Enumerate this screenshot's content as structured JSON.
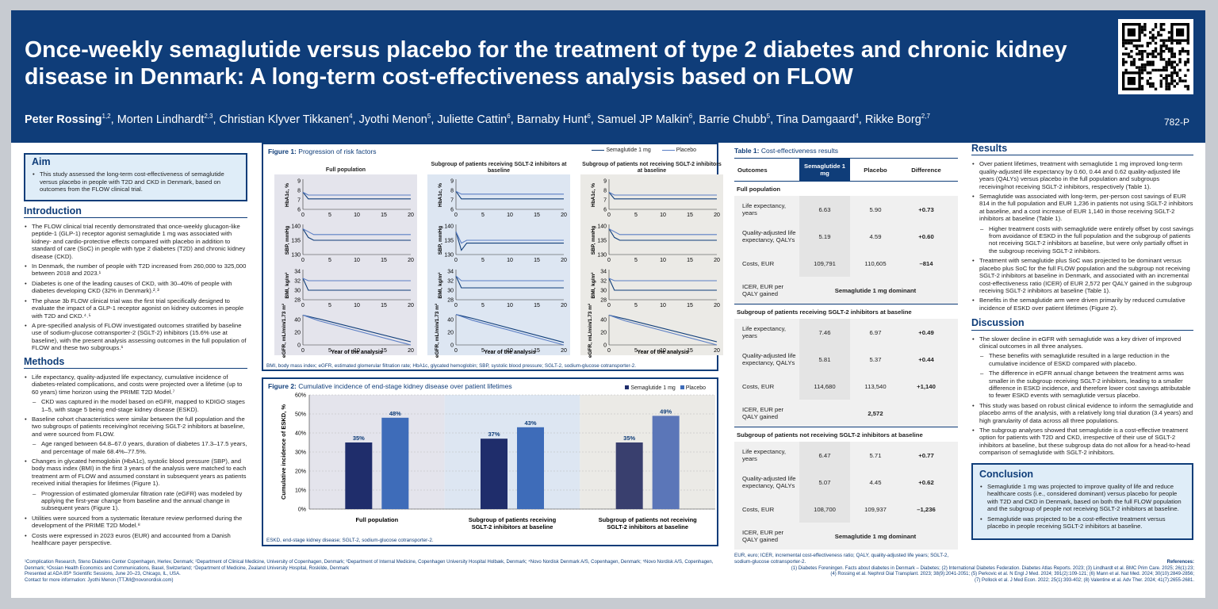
{
  "header": {
    "title": "Once-weekly semaglutide versus placebo for the treatment of type 2 diabetes and chronic kidney disease in Denmark: A long-term cost-effectiveness analysis based on FLOW",
    "authors": [
      [
        "Peter Rossing",
        "1,2"
      ],
      [
        "Morten Lindhardt",
        "2,3"
      ],
      [
        "Christian Klyver Tikkanen",
        "4"
      ],
      [
        "Jyothi Menon",
        "5"
      ],
      [
        "Juliette Cattin",
        "6"
      ],
      [
        "Barnaby Hunt",
        "6"
      ],
      [
        "Samuel JP Malkin",
        "6"
      ],
      [
        "Barrie Chubb",
        "5"
      ],
      [
        "Tina Damgaard",
        "4"
      ],
      [
        "Rikke Borg",
        "2,7"
      ]
    ],
    "poster_number": "782-P"
  },
  "aim": {
    "heading": "Aim",
    "text": "This study assessed the long-term cost-effectiveness of semaglutide versus placebo in people with T2D and CKD in Denmark, based on outcomes from the FLOW clinical trial."
  },
  "introduction": {
    "heading": "Introduction",
    "items": [
      [
        "b",
        "The FLOW clinical trial recently demonstrated that once-weekly glucagon-like peptide-1 (GLP-1) receptor agonist semaglutide 1 mg was associated with kidney- and cardio-protective effects compared with placebo in addition to standard of care (SoC) in people with type 2 diabetes (T2D) and chronic kidney disease (CKD)."
      ],
      [
        "b",
        "In Denmark, the number of people with T2D increased from 260,000 to 325,000 between 2018 and 2023.¹"
      ],
      [
        "b",
        "Diabetes is one of the leading causes of CKD, with 30–40% of people with diabetes developing CKD (32% in Denmark).²˒³"
      ],
      [
        "b",
        "The phase 3b FLOW clinical trial was the first trial specifically designed to evaluate the impact of a GLP-1 receptor agonist on kidney outcomes in people with T2D and CKD.⁴˒⁵"
      ],
      [
        "b",
        "A pre-specified analysis of FLOW investigated outcomes stratified by baseline use of sodium-glucose cotransporter-2 (SGLT-2) inhibitors (15.6% use at baseline), with the present analysis assessing outcomes in the full population of FLOW and these two subgroups.⁶"
      ]
    ]
  },
  "methods": {
    "heading": "Methods",
    "items": [
      [
        "b",
        "Life expectancy, quality-adjusted life expectancy, cumulative incidence of diabetes-related complications, and costs were projected over a lifetime (up to 60 years) time horizon using the PRIME T2D Model.⁷"
      ],
      [
        "s",
        "CKD was captured in the model based on eGFR, mapped to KDIGO stages 1–5, with stage 5 being end-stage kidney disease (ESKD)."
      ],
      [
        "b",
        "Baseline cohort characteristics were similar between the full population and the two subgroups of patients receiving/not receiving SGLT-2 inhibitors at baseline, and were sourced from FLOW."
      ],
      [
        "s",
        "Age ranged between 64.8–67.0 years, duration of diabetes 17.3–17.5 years, and percentage of male 68.4%–77.5%."
      ],
      [
        "b",
        "Changes in glycated hemoglobin (HbA1c), systolic blood pressure (SBP), and body mass index (BMI) in the first 3 years of the analysis were matched to each treatment arm of FLOW and assumed constant in subsequent years as patients received initial therapies for lifetimes (Figure 1)."
      ],
      [
        "s",
        "Progression of estimated glomerular filtration rate (eGFR) was modeled by applying the first-year change from baseline and the annual change in subsequent years (Figure 1)."
      ],
      [
        "b",
        "Utilities were sourced from a systematic literature review performed during the development of the PRIME T2D Model.⁸"
      ],
      [
        "b",
        "Costs were expressed in 2023 euros (EUR) and accounted from a Danish healthcare payer perspective."
      ]
    ]
  },
  "figure1": {
    "label": "Figure 1:",
    "title": "Progression of risk factors",
    "legend": [
      "Semaglutide 1 mg",
      "Placebo"
    ],
    "panels": [
      "Full population",
      "Subgroup of patients receiving SGLT-2 inhibitors at baseline",
      "Subgroup of patients not receiving SGLT-2 inhibitors at baseline"
    ],
    "ylabels": [
      "HbA1c, %",
      "SBP, mmHg",
      "BMI, kg/m²",
      "eGFR, mL/min/1.73 m²"
    ],
    "xlabel": "Year of the analysis",
    "footnote": "BMI, body mass index; eGFR, estimated glomerular filtration rate; HbA1c, glycated hemoglobin; SBP, systolic blood pressure; SGLT-2, sodium-glucose cotransporter-2."
  },
  "figure2": {
    "label": "Figure 2:",
    "title": "Cumulative incidence of end-stage kidney disease over patient lifetimes",
    "legend": [
      "Semaglutide 1 mg",
      "Placebo"
    ],
    "ylabel": "Cumulative incidence of ESKD, %",
    "footnote": "ESKD, end-stage kidney disease; SGLT-2, sodium-glucose cotransporter-2."
  },
  "chart_data": [
    {
      "type": "line",
      "panel": "Full population",
      "x": [
        0,
        1,
        2,
        3,
        20
      ],
      "colors": {
        "semaglutide": "#0f3d79",
        "placebo": "#5b7ec4"
      },
      "series": [
        {
          "name": "Semaglutide 1 mg",
          "metric": "HbA1c",
          "values": [
            7.8,
            7.1,
            7.1,
            7.1,
            7.1
          ]
        },
        {
          "name": "Placebo",
          "metric": "HbA1c",
          "values": [
            7.8,
            7.5,
            7.5,
            7.5,
            7.5
          ]
        },
        {
          "name": "Semaglutide 1 mg",
          "metric": "SBP",
          "values": [
            139,
            136,
            135,
            135,
            135
          ]
        },
        {
          "name": "Placebo",
          "metric": "SBP",
          "values": [
            139,
            138,
            137,
            137,
            137
          ]
        },
        {
          "name": "Semaglutide 1 mg",
          "metric": "BMI",
          "values": [
            32.5,
            30,
            30,
            30,
            30
          ]
        },
        {
          "name": "Placebo",
          "metric": "BMI",
          "values": [
            32.5,
            32,
            32,
            32,
            32
          ]
        },
        {
          "name": "Semaglutide 1 mg",
          "metric": "eGFR",
          "values": [
            47,
            45,
            43,
            41,
            5
          ]
        },
        {
          "name": "Placebo",
          "metric": "eGFR",
          "values": [
            47,
            44,
            41,
            38,
            0
          ]
        }
      ],
      "xticks": [
        0,
        5,
        10,
        15,
        20
      ],
      "yticks": {
        "HbA1c": [
          6,
          7,
          8,
          9
        ],
        "SBP": [
          130,
          135,
          140
        ],
        "BMI": [
          28,
          30,
          32,
          34
        ],
        "eGFR": [
          0,
          20,
          40
        ]
      }
    },
    {
      "type": "line",
      "panel": "Subgroup of patients receiving SGLT-2 inhibitors at baseline",
      "x": [
        0,
        1,
        2,
        3,
        20
      ],
      "series": [
        {
          "name": "Semaglutide 1 mg",
          "metric": "HbA1c",
          "values": [
            7.9,
            7.1,
            7.1,
            7.1,
            7.1
          ]
        },
        {
          "name": "Placebo",
          "metric": "HbA1c",
          "values": [
            7.9,
            7.6,
            7.6,
            7.6,
            7.6
          ]
        },
        {
          "name": "Semaglutide 1 mg",
          "metric": "SBP",
          "values": [
            138,
            131.5,
            134,
            134,
            134
          ]
        },
        {
          "name": "Placebo",
          "metric": "SBP",
          "values": [
            138,
            134,
            135,
            135,
            135
          ]
        },
        {
          "name": "Semaglutide 1 mg",
          "metric": "BMI",
          "values": [
            33,
            30.5,
            30.5,
            30.5,
            30.5
          ]
        },
        {
          "name": "Placebo",
          "metric": "BMI",
          "values": [
            33,
            32,
            32,
            32,
            32
          ]
        },
        {
          "name": "Semaglutide 1 mg",
          "metric": "eGFR",
          "values": [
            48,
            46,
            44,
            42,
            4
          ]
        },
        {
          "name": "Placebo",
          "metric": "eGFR",
          "values": [
            48,
            45,
            42,
            39,
            0
          ]
        }
      ],
      "xticks": [
        0,
        5,
        10,
        15,
        20
      ],
      "yticks": {
        "HbA1c": [
          6,
          7,
          8,
          9
        ],
        "SBP": [
          130,
          135,
          140
        ],
        "BMI": [
          28,
          30,
          32,
          34
        ],
        "eGFR": [
          0,
          20,
          40
        ]
      }
    },
    {
      "type": "line",
      "panel": "Subgroup of patients not receiving SGLT-2 inhibitors at baseline",
      "x": [
        0,
        1,
        2,
        3,
        20
      ],
      "series": [
        {
          "name": "Semaglutide 1 mg",
          "metric": "HbA1c",
          "values": [
            7.8,
            7.1,
            7.1,
            7.1,
            7.1
          ]
        },
        {
          "name": "Placebo",
          "metric": "HbA1c",
          "values": [
            7.8,
            7.5,
            7.5,
            7.5,
            7.5
          ]
        },
        {
          "name": "Semaglutide 1 mg",
          "metric": "SBP",
          "values": [
            139,
            136,
            135,
            135,
            135
          ]
        },
        {
          "name": "Placebo",
          "metric": "SBP",
          "values": [
            139,
            138,
            137,
            137,
            137
          ]
        },
        {
          "name": "Semaglutide 1 mg",
          "metric": "BMI",
          "values": [
            32.5,
            30,
            30,
            30,
            30
          ]
        },
        {
          "name": "Placebo",
          "metric": "BMI",
          "values": [
            32.5,
            32,
            32,
            32,
            32
          ]
        },
        {
          "name": "Semaglutide 1 mg",
          "metric": "eGFR",
          "values": [
            47,
            45,
            43,
            41,
            5
          ]
        },
        {
          "name": "Placebo",
          "metric": "eGFR",
          "values": [
            47,
            44,
            41,
            38,
            0
          ]
        }
      ],
      "xticks": [
        0,
        5,
        10,
        15,
        20
      ],
      "yticks": {
        "HbA1c": [
          6,
          7,
          8,
          9
        ],
        "SBP": [
          130,
          135,
          140
        ],
        "BMI": [
          28,
          30,
          32,
          34
        ],
        "eGFR": [
          0,
          20,
          40
        ]
      }
    },
    {
      "type": "bar",
      "categories": [
        "Full population",
        "Subgroup of patients receiving SGLT-2 inhibitors at baseline",
        "Subgroup of patients not receiving SGLT-2 inhibitors at baseline"
      ],
      "series": [
        {
          "name": "Semaglutide 1 mg",
          "values": [
            35,
            37,
            35
          ],
          "labels": [
            "35%",
            "37%",
            "35%"
          ]
        },
        {
          "name": "Placebo",
          "values": [
            48,
            43,
            49
          ],
          "labels": [
            "48%",
            "43%",
            "49%"
          ]
        }
      ],
      "ylim": [
        0,
        60
      ],
      "yticks": [
        "0%",
        "10%",
        "20%",
        "30%",
        "40%",
        "50%",
        "60%"
      ],
      "legend": "top-right",
      "colors": {
        "semaglutide": "#1f2d6b",
        "placebo": "#3e6cb9"
      }
    }
  ],
  "table1": {
    "label": "Table 1:",
    "title": "Cost-effectiveness results",
    "headers": [
      "Outcomes",
      "Semaglutide 1 mg",
      "Placebo",
      "Difference"
    ],
    "groups": [
      {
        "name": "Full population",
        "rows": [
          [
            "Life expectancy, years",
            "6.63",
            "5.90",
            "+0.73"
          ],
          [
            "Quality-adjusted life expectancy, QALYs",
            "5.19",
            "4.59",
            "+0.60"
          ],
          [
            "Costs, EUR",
            "109,791",
            "110,605",
            "–814"
          ]
        ],
        "icer_label": "ICER, EUR per QALY gained",
        "icer": "Semaglutide 1 mg dominant"
      },
      {
        "name": "Subgroup of patients receiving SGLT-2 inhibitors at baseline",
        "rows": [
          [
            "Life expectancy, years",
            "7.46",
            "6.97",
            "+0.49"
          ],
          [
            "Quality-adjusted life expectancy, QALYs",
            "5.81",
            "5.37",
            "+0.44"
          ],
          [
            "Costs, EUR",
            "114,680",
            "113,540",
            "+1,140"
          ]
        ],
        "icer_label": "ICER, EUR per QALY gained",
        "icer": "2,572"
      },
      {
        "name": "Subgroup of patients not receiving SGLT-2 inhibitors at baseline",
        "rows": [
          [
            "Life expectancy, years",
            "6.47",
            "5.71",
            "+0.77"
          ],
          [
            "Quality-adjusted life expectancy, QALYs",
            "5.07",
            "4.45",
            "+0.62"
          ],
          [
            "Costs, EUR",
            "108,700",
            "109,937",
            "–1,236"
          ]
        ],
        "icer_label": "ICER, EUR per QALY gained",
        "icer": "Semaglutide 1 mg dominant"
      }
    ],
    "footnote": "EUR, euro; ICER, incremental cost-effectiveness ratio; QALY, quality-adjusted life years; SGLT-2, sodium-glucose cotransporter-2."
  },
  "results": {
    "heading": "Results",
    "items": [
      [
        "b",
        "Over patient lifetimes, treatment with semaglutide 1 mg improved long-term quality-adjusted life expectancy by 0.60, 0.44 and 0.62 quality-adjusted life years (QALYs) versus placebo in the full population and subgroups receiving/not receiving SGLT-2 inhibitors, respectively (Table 1)."
      ],
      [
        "b",
        "Semaglutide was associated with long-term, per-person cost savings of EUR 814 in the full population and EUR 1,236 in patients not using SGLT-2 inhibitors at baseline, and a cost increase of EUR 1,140 in those receiving SGLT-2 inhibitors at baseline (Table 1)."
      ],
      [
        "s",
        "Higher treatment costs with semaglutide were entirely offset by cost savings from avoidance of ESKD in the full population and the subgroup of patients not receiving SGLT-2 inhibitors at baseline, but were only partially offset in the subgroup receiving SGLT-2 inhibitors."
      ],
      [
        "b",
        "Treatment with semaglutide plus SoC was projected to be dominant versus placebo plus SoC for the full FLOW population and the subgroup not receiving SGLT-2 inhibitors at baseline in Denmark, and associated with an incremental cost-effectiveness ratio (ICER) of EUR 2,572 per QALY gained in the subgroup receiving SGLT-2 inhibitors at baseline (Table 1)."
      ],
      [
        "b",
        "Benefits in the semaglutide arm were driven primarily by reduced cumulative incidence of ESKD over patient lifetimes (Figure 2)."
      ]
    ]
  },
  "discussion": {
    "heading": "Discussion",
    "items": [
      [
        "b",
        "The slower decline in eGFR with semaglutide was a key driver of improved clinical outcomes in all three analyses."
      ],
      [
        "s",
        "These benefits with semaglutide resulted in a large reduction in the cumulative incidence of ESKD compared with placebo."
      ],
      [
        "s",
        "The difference in eGFR annual change between the treatment arms was smaller in the subgroup receiving SGLT-2 inhibitors, leading to a smaller difference in ESKD incidence, and therefore lower cost savings attributable to fewer ESKD events with semaglutide versus placebo."
      ],
      [
        "b",
        "This study was based on robust clinical evidence to inform the semaglutide and placebo arms of the analysis, with a relatively long trial duration (3.4 years) and high granularity of data across all three populations."
      ],
      [
        "b",
        "The subgroup analyses showed that semaglutide is a cost-effective treatment option for patients with T2D and CKD, irrespective of their use of SGLT-2 inhibitors at baseline, but these subgroup data do not allow for a head-to-head comparison of semaglutide with SGLT-2 inhibitors."
      ]
    ]
  },
  "conclusion": {
    "heading": "Conclusion",
    "items": [
      [
        "b",
        "Semaglutide 1 mg was projected to improve quality of life and reduce healthcare costs (i.e., considered dominant) versus placebo for people with T2D and CKD in Denmark, based on both the full FLOW population and the subgroup of people not receiving SGLT-2 inhibitors at baseline."
      ],
      [
        "b",
        "Semaglutide was projected to be a cost-effective treatment versus placebo in people receiving SGLT-2 inhibitors at baseline."
      ]
    ]
  },
  "affiliations": "¹Complication Research, Steno Diabetes Center Copenhagen, Herlev, Denmark; ²Department of Clinical Medicine, University of Copenhagen, Denmark; ³Department of Internal Medicine, Copenhagen University Hospital Holbæk, Denmark; ⁴Novo Nordisk Denmark A/S, Copenhagen, Denmark; ⁵Novo Nordisk A/S, Copenhagen, Denmark; ⁶Ossian Health Economics and Communications, Basel, Switzerland; ⁷Department of Medicine, Zealand University Hospital, Roskilde, Denmark",
  "presented": "Presented at ADA 85ᵗʰ Scientific Sessions, June 20–23, Chicago, IL, USA.",
  "contact": "Contact for more information: Jyothi Menon (TTJM@novonordisk.com)",
  "references": {
    "heading": "References:",
    "lines": [
      "(1) Diabetes Foreningen. Facts about diabetes in Denmark – Diabetes; (2) International Diabetes Federation. Diabetes Atlas Reports. 2023; (3) Lindhardt et al. BMC Prim Care. 2025; 26(1):23;",
      "(4) Rossing et al. Nephrol Dial Transplant. 2023; 38(9):2041-2051; (5) Perkovic et al. N Engl J Med. 2024; 391(2):109-121; (6) Mann et al. Nat Med. 2024; 30(10):2849-2856;",
      "(7) Pollock et al. J Med Econ. 2022; 25(1):393-402; (8) Valentine et al. Adv Ther. 2024; 41(7):2655-2681."
    ]
  }
}
